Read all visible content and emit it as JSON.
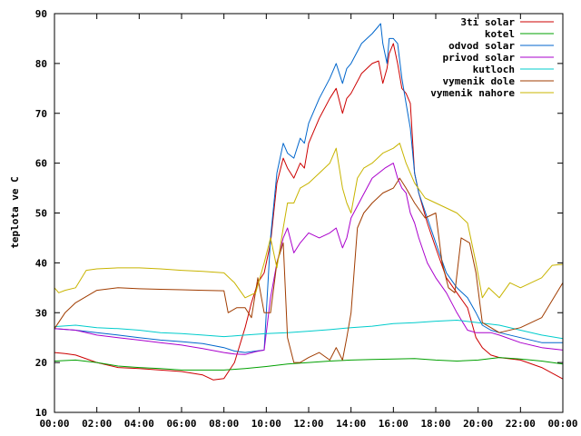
{
  "chart_data": {
    "type": "line",
    "title": "",
    "xlabel": "",
    "ylabel": "teplota ve C",
    "xlim": [
      0,
      24
    ],
    "ylim": [
      10,
      90
    ],
    "xticks": [
      "00:00",
      "02:00",
      "04:00",
      "06:00",
      "08:00",
      "10:00",
      "12:00",
      "14:00",
      "16:00",
      "18:00",
      "20:00",
      "22:00",
      "00:00"
    ],
    "yticks": [
      10,
      20,
      30,
      40,
      50,
      60,
      70,
      80,
      90
    ],
    "grid": false,
    "legend_position": "top-right",
    "series": [
      {
        "name": "3ti solar",
        "color": "#cc0000",
        "x": [
          0,
          0.5,
          1,
          2,
          3,
          4,
          5,
          6,
          7,
          7.5,
          8,
          8.5,
          9,
          9.3,
          9.6,
          9.9,
          10.2,
          10.5,
          10.8,
          11.0,
          11.3,
          11.6,
          11.8,
          12.0,
          12.5,
          13.0,
          13.3,
          13.6,
          13.8,
          14.0,
          14.5,
          15.0,
          15.3,
          15.5,
          15.7,
          15.8,
          16.0,
          16.2,
          16.4,
          16.6,
          16.8,
          17.0,
          17.2,
          17.6,
          18.0,
          18.5,
          19.0,
          19.5,
          19.9,
          20.2,
          20.6,
          21,
          22,
          23,
          24
        ],
        "y": [
          22,
          21.8,
          21.5,
          20,
          19,
          18.8,
          18.5,
          18.2,
          17.5,
          16.5,
          16.8,
          20,
          27,
          32,
          36,
          38,
          44,
          56,
          61,
          59,
          57,
          60,
          59,
          64,
          69,
          73,
          75,
          70,
          73,
          74,
          78,
          80,
          80.5,
          76,
          79,
          82,
          84,
          80,
          75,
          74,
          72,
          58,
          54,
          48,
          43,
          37,
          34,
          31,
          25,
          23,
          21.5,
          21,
          20.5,
          19,
          16.7
        ]
      },
      {
        "name": "kotel",
        "color": "#00a000",
        "x": [
          0,
          1,
          2,
          3,
          4,
          5,
          6,
          7,
          8,
          9,
          10,
          11,
          12,
          13,
          14,
          15,
          16,
          17,
          18,
          19,
          20,
          21,
          22,
          23,
          24
        ],
        "y": [
          20.3,
          20.5,
          20,
          19.3,
          19,
          18.8,
          18.5,
          18.5,
          18.5,
          18.8,
          19.2,
          19.7,
          20,
          20.3,
          20.5,
          20.6,
          20.7,
          20.8,
          20.5,
          20.3,
          20.5,
          21,
          20.7,
          20.3,
          19.7
        ]
      },
      {
        "name": "odvod solar",
        "color": "#0066cc",
        "x": [
          0,
          1,
          2,
          3,
          4,
          5,
          6,
          7,
          8,
          8.5,
          9,
          9.5,
          9.9,
          10.2,
          10.5,
          10.8,
          11.0,
          11.3,
          11.6,
          11.8,
          12.0,
          12.5,
          13.0,
          13.3,
          13.6,
          13.8,
          14.0,
          14.5,
          15.0,
          15.2,
          15.4,
          15.5,
          15.7,
          15.8,
          16.0,
          16.2,
          16.4,
          16.6,
          16.8,
          17.0,
          17.2,
          17.6,
          18.0,
          18.5,
          19.0,
          19.5,
          19.9,
          20.2,
          20.6,
          21,
          22,
          23,
          24
        ],
        "y": [
          26.8,
          26.5,
          26,
          25.5,
          25,
          24.5,
          24.2,
          23.8,
          23,
          22.3,
          22,
          22.3,
          22.5,
          45,
          58,
          64,
          62,
          61,
          65,
          64,
          68,
          73,
          77,
          80,
          76,
          79,
          80,
          84,
          86,
          87,
          88,
          84,
          80,
          85,
          85,
          84,
          77,
          72,
          67,
          58,
          54,
          49,
          44,
          38,
          35,
          33,
          30,
          27.5,
          26.5,
          26,
          25,
          24,
          24
        ]
      },
      {
        "name": "privod solar",
        "color": "#aa00cc",
        "x": [
          0,
          1,
          2,
          3,
          4,
          5,
          6,
          7,
          8,
          8.5,
          9,
          9.5,
          9.9,
          10.2,
          10.5,
          10.8,
          11.0,
          11.3,
          11.6,
          12.0,
          12.5,
          13.0,
          13.3,
          13.6,
          13.8,
          14.0,
          14.5,
          15.0,
          15.3,
          15.6,
          16.0,
          16.2,
          16.4,
          16.6,
          16.8,
          17.0,
          17.2,
          17.6,
          18.0,
          18.5,
          19.0,
          19.5,
          19.9,
          20.2,
          20.6,
          21,
          22,
          23,
          24
        ],
        "y": [
          26.8,
          26.5,
          25.5,
          25,
          24.5,
          24,
          23.5,
          22.8,
          22,
          21.7,
          21.6,
          22.2,
          22.5,
          33,
          40,
          45,
          47,
          42,
          44,
          46,
          45,
          46,
          47,
          43,
          45,
          49,
          53,
          57,
          58,
          59,
          60,
          57,
          55,
          54,
          50,
          48,
          45,
          40,
          37,
          34,
          30,
          26.5,
          26,
          26,
          26,
          25.5,
          24,
          23,
          22.5
        ]
      },
      {
        "name": "kutloch",
        "color": "#00cccc",
        "x": [
          0,
          1,
          2,
          3,
          4,
          5,
          6,
          7,
          8,
          9,
          10,
          11,
          12,
          13,
          14,
          15,
          16,
          17,
          18,
          19,
          20,
          21,
          22,
          23,
          24
        ],
        "y": [
          27.2,
          27.5,
          27,
          26.8,
          26.5,
          26,
          25.8,
          25.5,
          25.2,
          25.5,
          25.8,
          26,
          26.3,
          26.6,
          27,
          27.3,
          27.8,
          28,
          28.3,
          28.5,
          28,
          27.5,
          26.5,
          25.5,
          24.8
        ]
      },
      {
        "name": "vymenik dole",
        "color": "#a03c00",
        "x": [
          0,
          0.5,
          1,
          2,
          3,
          4,
          5,
          6,
          7,
          8,
          8.2,
          8.6,
          9,
          9.3,
          9.6,
          9.9,
          10.2,
          10.5,
          10.8,
          11.0,
          11.3,
          11.6,
          12,
          12.5,
          13,
          13.3,
          13.6,
          13.8,
          14.0,
          14.3,
          14.6,
          15,
          15.5,
          16,
          16.3,
          16.6,
          17,
          17.5,
          18,
          18.3,
          18.6,
          18.9,
          19.2,
          19.6,
          19.9,
          20.2,
          20.6,
          21,
          22,
          23,
          24
        ],
        "y": [
          26.8,
          30,
          32,
          34.5,
          35,
          34.8,
          34.7,
          34.6,
          34.5,
          34.4,
          30,
          31,
          31,
          29,
          37,
          30,
          30,
          40,
          44,
          25,
          20,
          20,
          21,
          22,
          20.5,
          23,
          20.5,
          25,
          30,
          47,
          50,
          52,
          54,
          55,
          57,
          55,
          52,
          49,
          50,
          40,
          35,
          34,
          45,
          44,
          38,
          28,
          27,
          26,
          27,
          29,
          36
        ]
      },
      {
        "name": "vymenik nahore",
        "color": "#c8b400",
        "x": [
          0,
          0.2,
          0.5,
          1,
          1.5,
          2,
          3,
          4,
          5,
          6,
          7,
          8,
          8.5,
          9,
          9.5,
          9.9,
          10.2,
          10.5,
          10.8,
          11.0,
          11.3,
          11.6,
          12,
          12.5,
          13,
          13.3,
          13.6,
          13.8,
          14.0,
          14.3,
          14.6,
          15,
          15.5,
          16,
          16.3,
          16.6,
          17,
          17.5,
          18,
          18.5,
          19,
          19.5,
          19.9,
          20.2,
          20.5,
          21,
          21.5,
          22,
          23,
          23.5,
          24
        ],
        "y": [
          35,
          34,
          34.5,
          35,
          38.5,
          38.8,
          39,
          39,
          38.8,
          38.5,
          38.3,
          38,
          36,
          33,
          34,
          40,
          45,
          39,
          47,
          52,
          52,
          55,
          56,
          58,
          60,
          63,
          55,
          52,
          50,
          57,
          59,
          60,
          62,
          63,
          64,
          60,
          56,
          53,
          52,
          51,
          50,
          48,
          40,
          33,
          35,
          33,
          36,
          35,
          37,
          39.5,
          39.7
        ]
      }
    ]
  }
}
